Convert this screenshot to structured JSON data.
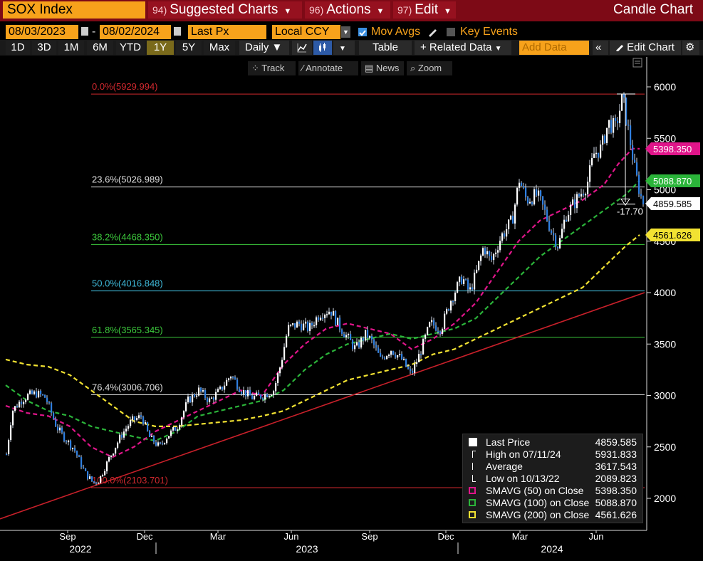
{
  "header": {
    "ticker": "SOX Index",
    "menus": [
      {
        "num": "94)",
        "label": "Suggested Charts"
      },
      {
        "num": "96)",
        "label": "Actions"
      },
      {
        "num": "97)",
        "label": "Edit"
      }
    ],
    "chart_kind": "Candle Chart"
  },
  "controls": {
    "start_date": "08/03/2023",
    "end_date": "08/02/2024",
    "date_sep": "-",
    "price_field": "Last Px",
    "currency": "Local CCY",
    "mov_avgs": "Mov Avgs",
    "key_events": "Key Events",
    "periods": [
      "1D",
      "3D",
      "1M",
      "6M",
      "YTD",
      "1Y",
      "5Y",
      "Max"
    ],
    "active_period": "1Y",
    "frequency": "Daily ▼",
    "table": "Table",
    "related_data": "+ Related Data",
    "add_data_placeholder": "Add Data",
    "edit_chart": "Edit Chart"
  },
  "toolbar": {
    "track": "Track",
    "annotate": "Annotate",
    "news": "News",
    "zoom": "Zoom"
  },
  "colors": {
    "orange": "#f7a21b",
    "title_bar": "#7d0a16",
    "sma50": "#e0158a",
    "sma100": "#2bb43a",
    "sma200": "#f2e232",
    "trend": "#c8202a"
  },
  "chart_data": {
    "type": "candlestick",
    "x_axis": {
      "months": [
        "Sep",
        "Dec",
        "Mar",
        "Jun",
        "Sep",
        "Dec",
        "Mar",
        "Jun"
      ],
      "years": [
        "2022",
        "2023",
        "2024"
      ]
    },
    "y_axis": {
      "ticks": [
        2000,
        2500,
        3000,
        3500,
        4000,
        4500,
        5000,
        5500,
        6000
      ],
      "range": [
        1800,
        6200
      ]
    },
    "fib_levels": [
      {
        "label": "0.0%(5929.994)",
        "value": 5929.994,
        "color": "#d0282e"
      },
      {
        "label": "23.6%(5026.989)",
        "value": 5026.989,
        "color": "#dddddd"
      },
      {
        "label": "38.2%(4468.350)",
        "value": 4468.35,
        "color": "#3cc83c"
      },
      {
        "label": "50.0%(4016.848)",
        "value": 4016.848,
        "color": "#3fb8d8"
      },
      {
        "label": "61.8%(3565.345)",
        "value": 3565.345,
        "color": "#3cc83c"
      },
      {
        "label": "76.4%(3006.706)",
        "value": 3006.706,
        "color": "#dddddd"
      },
      {
        "label": "100.0%(2103.701)",
        "value": 2103.701,
        "color": "#d0282e"
      }
    ],
    "right_labels": [
      {
        "text": "5398.350",
        "value": 5398.35,
        "bg": "#e0158a",
        "fg": "#ffffff"
      },
      {
        "text": "5088.870",
        "value": 5088.87,
        "bg": "#2bb43a",
        "fg": "#ffffff"
      },
      {
        "text": "4859.585",
        "value": 4859.585,
        "bg": "#ffffff",
        "fg": "#000000"
      },
      {
        "text": "4561.626",
        "value": 4561.626,
        "bg": "#f2e232",
        "fg": "#000000"
      }
    ],
    "drawdown_label": "-17.70",
    "price_path": [
      [
        0,
        2430
      ],
      [
        8,
        2850
      ],
      [
        20,
        2950
      ],
      [
        30,
        3000
      ],
      [
        42,
        3020
      ],
      [
        55,
        2980
      ],
      [
        70,
        2700
      ],
      [
        80,
        2600
      ],
      [
        95,
        2480
      ],
      [
        110,
        2250
      ],
      [
        122,
        2150
      ],
      [
        130,
        2180
      ],
      [
        145,
        2400
      ],
      [
        160,
        2600
      ],
      [
        175,
        2750
      ],
      [
        190,
        2800
      ],
      [
        200,
        2600
      ],
      [
        215,
        2500
      ],
      [
        225,
        2600
      ],
      [
        240,
        2700
      ],
      [
        255,
        2950
      ],
      [
        270,
        3050
      ],
      [
        285,
        2950
      ],
      [
        300,
        3050
      ],
      [
        315,
        3200
      ],
      [
        330,
        3050
      ],
      [
        345,
        2980
      ],
      [
        360,
        3000
      ],
      [
        375,
        3050
      ],
      [
        385,
        3300
      ],
      [
        395,
        3650
      ],
      [
        410,
        3700
      ],
      [
        425,
        3650
      ],
      [
        440,
        3800
      ],
      [
        455,
        3830
      ],
      [
        465,
        3700
      ],
      [
        480,
        3550
      ],
      [
        490,
        3450
      ],
      [
        505,
        3600
      ],
      [
        515,
        3500
      ],
      [
        525,
        3350
      ],
      [
        540,
        3450
      ],
      [
        555,
        3350
      ],
      [
        568,
        3200
      ],
      [
        580,
        3400
      ],
      [
        595,
        3700
      ],
      [
        610,
        3650
      ],
      [
        625,
        3950
      ],
      [
        640,
        4150
      ],
      [
        650,
        4000
      ],
      [
        660,
        4200
      ],
      [
        670,
        4450
      ],
      [
        680,
        4300
      ],
      [
        695,
        4550
      ],
      [
        710,
        4700
      ],
      [
        720,
        5100
      ],
      [
        730,
        4900
      ],
      [
        745,
        4950
      ],
      [
        755,
        4800
      ],
      [
        765,
        4600
      ],
      [
        775,
        4450
      ],
      [
        785,
        4750
      ],
      [
        800,
        4900
      ],
      [
        815,
        5050
      ],
      [
        825,
        5350
      ],
      [
        835,
        5400
      ],
      [
        845,
        5650
      ],
      [
        855,
        5600
      ],
      [
        865,
        5900
      ],
      [
        875,
        5500
      ],
      [
        882,
        5200
      ],
      [
        890,
        4950
      ],
      [
        895,
        4860
      ]
    ],
    "sma50_path": [
      [
        0,
        2900
      ],
      [
        30,
        2830
      ],
      [
        60,
        2800
      ],
      [
        90,
        2700
      ],
      [
        120,
        2500
      ],
      [
        150,
        2400
      ],
      [
        180,
        2500
      ],
      [
        210,
        2650
      ],
      [
        240,
        2750
      ],
      [
        270,
        2850
      ],
      [
        300,
        2950
      ],
      [
        330,
        3050
      ],
      [
        360,
        3000
      ],
      [
        390,
        3300
      ],
      [
        420,
        3500
      ],
      [
        450,
        3650
      ],
      [
        480,
        3700
      ],
      [
        510,
        3650
      ],
      [
        540,
        3600
      ],
      [
        570,
        3450
      ],
      [
        600,
        3550
      ],
      [
        630,
        3700
      ],
      [
        660,
        3900
      ],
      [
        690,
        4200
      ],
      [
        720,
        4500
      ],
      [
        750,
        4700
      ],
      [
        780,
        4800
      ],
      [
        810,
        4900
      ],
      [
        840,
        5050
      ],
      [
        860,
        5250
      ],
      [
        880,
        5400
      ],
      [
        890,
        5398
      ]
    ],
    "sma100_path": [
      [
        0,
        3100
      ],
      [
        30,
        2950
      ],
      [
        60,
        2850
      ],
      [
        90,
        2800
      ],
      [
        120,
        2700
      ],
      [
        150,
        2650
      ],
      [
        180,
        2600
      ],
      [
        210,
        2560
      ],
      [
        240,
        2650
      ],
      [
        270,
        2800
      ],
      [
        300,
        2850
      ],
      [
        330,
        2900
      ],
      [
        360,
        2950
      ],
      [
        390,
        3050
      ],
      [
        420,
        3250
      ],
      [
        450,
        3400
      ],
      [
        480,
        3500
      ],
      [
        510,
        3550
      ],
      [
        540,
        3600
      ],
      [
        570,
        3550
      ],
      [
        600,
        3600
      ],
      [
        630,
        3650
      ],
      [
        660,
        3750
      ],
      [
        690,
        3950
      ],
      [
        720,
        4150
      ],
      [
        750,
        4350
      ],
      [
        780,
        4500
      ],
      [
        810,
        4650
      ],
      [
        840,
        4800
      ],
      [
        870,
        4950
      ],
      [
        890,
        5088
      ]
    ],
    "sma200_path": [
      [
        0,
        3350
      ],
      [
        30,
        3300
      ],
      [
        60,
        3280
      ],
      [
        90,
        3200
      ],
      [
        120,
        3050
      ],
      [
        150,
        2900
      ],
      [
        180,
        2750
      ],
      [
        210,
        2700
      ],
      [
        240,
        2700
      ],
      [
        270,
        2720
      ],
      [
        300,
        2740
      ],
      [
        330,
        2760
      ],
      [
        360,
        2800
      ],
      [
        390,
        2850
      ],
      [
        420,
        2950
      ],
      [
        450,
        3050
      ],
      [
        480,
        3150
      ],
      [
        510,
        3200
      ],
      [
        540,
        3250
      ],
      [
        570,
        3300
      ],
      [
        600,
        3400
      ],
      [
        630,
        3450
      ],
      [
        660,
        3550
      ],
      [
        690,
        3650
      ],
      [
        720,
        3750
      ],
      [
        750,
        3850
      ],
      [
        780,
        3950
      ],
      [
        810,
        4050
      ],
      [
        840,
        4250
      ],
      [
        870,
        4450
      ],
      [
        890,
        4561
      ]
    ],
    "trendline": [
      [
        0,
        1800
      ],
      [
        905,
        4000
      ]
    ],
    "legend": [
      {
        "marker": "box",
        "color": "#ffffff",
        "label": "Last Price",
        "value": "4859.585"
      },
      {
        "marker": "high",
        "color": "#ffffff",
        "label": "High on 07/11/24",
        "value": "5931.833"
      },
      {
        "marker": "avg",
        "color": "#ffffff",
        "label": "Average",
        "value": "3617.543"
      },
      {
        "marker": "low",
        "color": "#ffffff",
        "label": "Low on 10/13/22",
        "value": "2089.823"
      },
      {
        "marker": "dash",
        "color": "#e0158a",
        "label": "SMAVG (50)  on Close",
        "value": "5398.350"
      },
      {
        "marker": "dash",
        "color": "#2bb43a",
        "label": "SMAVG (100)  on Close",
        "value": "5088.870"
      },
      {
        "marker": "dash",
        "color": "#f2e232",
        "label": "SMAVG (200)  on Close",
        "value": "4561.626"
      }
    ]
  }
}
